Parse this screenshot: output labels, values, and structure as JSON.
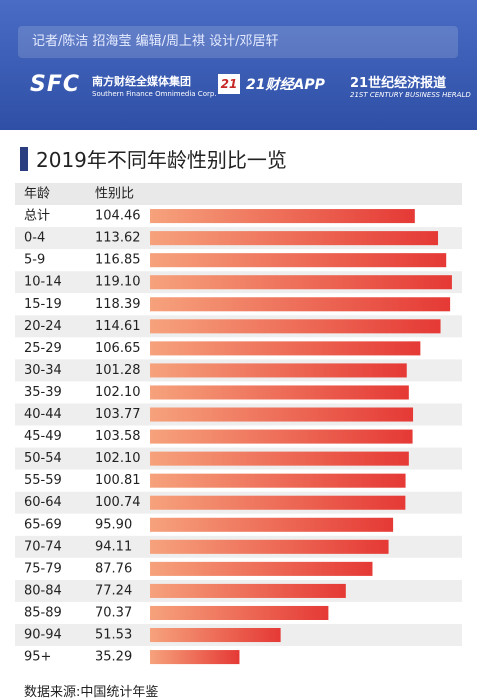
{
  "header": {
    "credits": "记者/陈洁  招海莹  编辑/周上祺  设计/邓居轩",
    "logo_sfc": "SFC",
    "logo_sfc_cn": "南方财经全媒体集团",
    "logo_sfc_en": "Southern Finance Omnimedia Corp.",
    "logo_21": "21",
    "logo_app": "21财经APP",
    "logo_herald_cn": "21世纪经济报道",
    "logo_herald_en": "21ST CENTURY BUSINESS HERALD"
  },
  "chart_data": {
    "type": "bar",
    "title": "2019年不同年龄性别比一览",
    "category_header": "年龄",
    "value_header": "性别比",
    "categories": [
      "总计",
      "0-4",
      "5-9",
      "10-14",
      "15-19",
      "20-24",
      "25-29",
      "30-34",
      "35-39",
      "40-44",
      "45-49",
      "50-54",
      "55-59",
      "60-64",
      "65-69",
      "70-74",
      "75-79",
      "80-84",
      "85-89",
      "90-94",
      "95+"
    ],
    "values": [
      104.46,
      113.62,
      116.85,
      119.1,
      118.39,
      114.61,
      106.65,
      101.28,
      102.1,
      103.77,
      103.58,
      102.1,
      100.81,
      100.74,
      95.9,
      94.11,
      87.76,
      77.24,
      70.37,
      51.53,
      35.29
    ],
    "value_labels": [
      "104.46",
      "113.62",
      "116.85",
      "119.10",
      "118.39",
      "114.61",
      "106.65",
      "101.28",
      "102.10",
      "103.77",
      "103.58",
      "102.10",
      "100.81",
      "100.74",
      "95.90",
      "94.11",
      "87.76",
      "77.24",
      "70.37",
      "51.53",
      "35.29"
    ],
    "color": "#e53935"
  },
  "footer": {
    "source": "数据来源:中国统计年鉴"
  }
}
